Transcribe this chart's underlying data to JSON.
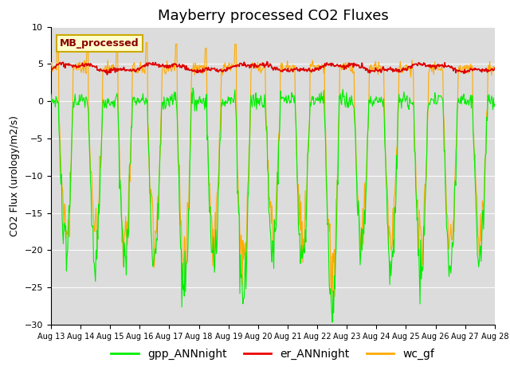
{
  "title": "Mayberry processed CO2 Fluxes",
  "ylabel": "CO2 Flux (urology/m2/s)",
  "ylim": [
    -30,
    10
  ],
  "yticks": [
    -30,
    -25,
    -20,
    -15,
    -10,
    -5,
    0,
    5,
    10
  ],
  "n_days": 15,
  "pts_per_day": 48,
  "start_day": 13,
  "month": "Aug",
  "legend_labels": [
    "gpp_ANNnight",
    "er_ANNnight",
    "wc_gf"
  ],
  "legend_colors": [
    "#00ee00",
    "#ee0000",
    "#ffaa00"
  ],
  "line_colors": {
    "gpp": "#00ee00",
    "er": "#dd0000",
    "wc": "#ffaa00"
  },
  "annotation_text": "MB_processed",
  "annotation_color": "#880000",
  "annotation_bg": "#ffffcc",
  "annotation_border": "#ccaa00",
  "bg_color": "#dcdcdc",
  "title_fontsize": 13,
  "axis_fontsize": 9,
  "tick_fontsize": 8,
  "legend_fontsize": 10,
  "gpp_day_depth_mean": 20,
  "gpp_day_depth_noise": 2,
  "er_mean": 4.5,
  "er_noise": 0.15,
  "wc_night_mean": 4.5,
  "wc_night_noise": 0.4
}
